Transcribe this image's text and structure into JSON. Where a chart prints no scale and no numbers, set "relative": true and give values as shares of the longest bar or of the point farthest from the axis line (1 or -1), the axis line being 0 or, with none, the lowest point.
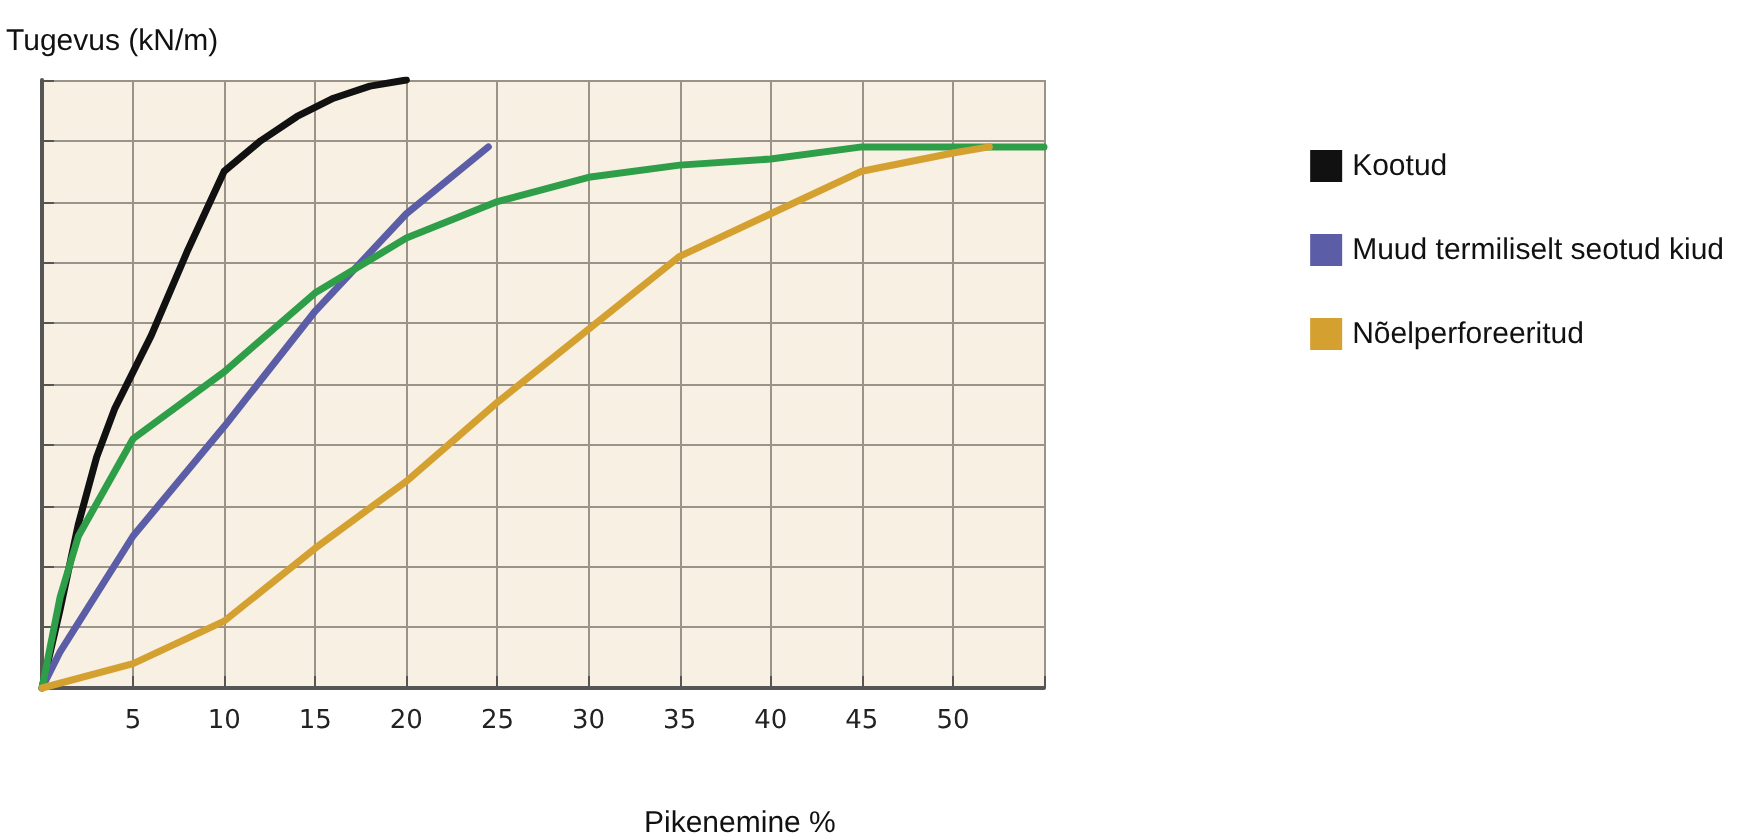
{
  "chart_data": {
    "type": "line",
    "relative": true,
    "ylabel": "Tugevus (kN/m)",
    "xlabel": "Pikenemine %",
    "xlim": [
      0,
      55
    ],
    "xticks": [
      {
        "value": 0,
        "label": null
      },
      5,
      10,
      15,
      20,
      25,
      30,
      35,
      40,
      45,
      50,
      {
        "value": 55,
        "label": null
      }
    ],
    "grid": true,
    "legend": "right",
    "marker": "none",
    "line_style": "solid",
    "series": [
      {
        "name": "Kootud",
        "color": "#111111",
        "x": [
          0,
          1,
          2,
          3,
          4,
          5,
          6,
          8,
          10,
          12,
          14,
          16,
          18,
          20
        ],
        "values": [
          0,
          0.13,
          0.27,
          0.38,
          0.46,
          0.52,
          0.58,
          0.72,
          0.85,
          0.9,
          0.94,
          0.97,
          0.99,
          1
        ]
      },
      {
        "name": "Muud termiliselt seotud kiud",
        "color": "#5b5ea6",
        "x": [
          0,
          1,
          5,
          10,
          15,
          20,
          24.5
        ],
        "values": [
          0,
          0.06,
          0.25,
          0.43,
          0.62,
          0.78,
          0.89
        ]
      },
      {
        "color": "#2e9e48",
        "x": [
          0,
          1,
          2,
          5,
          10,
          15,
          20,
          25,
          30,
          35,
          40,
          45,
          55
        ],
        "values": [
          0,
          0.15,
          0.25,
          0.41,
          0.52,
          0.65,
          0.74,
          0.8,
          0.84,
          0.86,
          0.87,
          0.89,
          0.89
        ]
      },
      {
        "name": "Nõelperforeeritud",
        "color": "#d4a030",
        "x": [
          0,
          5,
          10,
          15,
          20,
          25,
          30,
          35,
          40,
          45,
          50,
          52
        ],
        "values": [
          0,
          0.04,
          0.11,
          0.23,
          0.34,
          0.47,
          0.59,
          0.71,
          0.78,
          0.85,
          0.88,
          0.89
        ]
      }
    ]
  }
}
